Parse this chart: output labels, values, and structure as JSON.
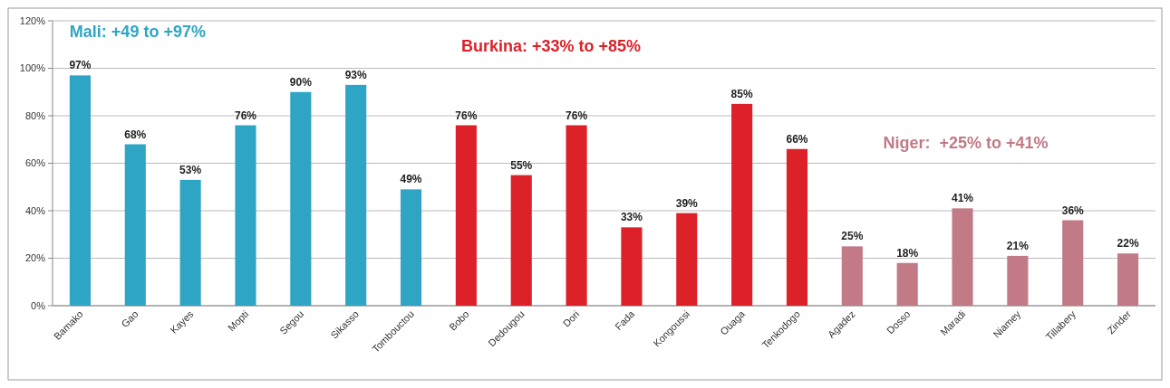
{
  "chart_data": {
    "type": "bar",
    "categories": [
      "Bamako",
      "Gao",
      "Kayes",
      "Mopti",
      "Segou",
      "Sikasso",
      "Tombouctou",
      "Bobo",
      "Dedougou",
      "Dori",
      "Fada",
      "Kongoussi",
      "Ouaga",
      "Tenkodogo",
      "Agadez",
      "Dosso",
      "Maradi",
      "Niamey",
      "Tillabery",
      "Zinder"
    ],
    "values": [
      97,
      68,
      53,
      76,
      90,
      93,
      49,
      76,
      55,
      76,
      33,
      39,
      85,
      66,
      25,
      18,
      41,
      21,
      36,
      22
    ],
    "colors": [
      "#2ea5c4",
      "#2ea5c4",
      "#2ea5c4",
      "#2ea5c4",
      "#2ea5c4",
      "#2ea5c4",
      "#2ea5c4",
      "#dc2129",
      "#dc2129",
      "#dc2129",
      "#dc2129",
      "#dc2129",
      "#dc2129",
      "#dc2129",
      "#c27a87",
      "#c27a87",
      "#c27a87",
      "#c27a87",
      "#c27a87",
      "#c27a87"
    ],
    "value_labels": [
      "97%",
      "68%",
      "53%",
      "76%",
      "90%",
      "93%",
      "49%",
      "76%",
      "55%",
      "76%",
      "33%",
      "39%",
      "85%",
      "66%",
      "25%",
      "18%",
      "41%",
      "21%",
      "36%",
      "22%"
    ],
    "ylim": [
      0,
      120
    ],
    "yticks": [
      {
        "value": 0,
        "label": "0%"
      },
      {
        "value": 20,
        "label": "20%"
      },
      {
        "value": 40,
        "label": "40%"
      },
      {
        "value": 60,
        "label": "60%"
      },
      {
        "value": 80,
        "label": "80%"
      },
      {
        "value": 100,
        "label": "100%"
      },
      {
        "value": 120,
        "label": "120%"
      }
    ],
    "grid": "y",
    "annotations": [
      "Mali: +49 to +97%",
      "Burkina: +33% to +85%",
      "Niger:  +25% to +41%"
    ]
  }
}
